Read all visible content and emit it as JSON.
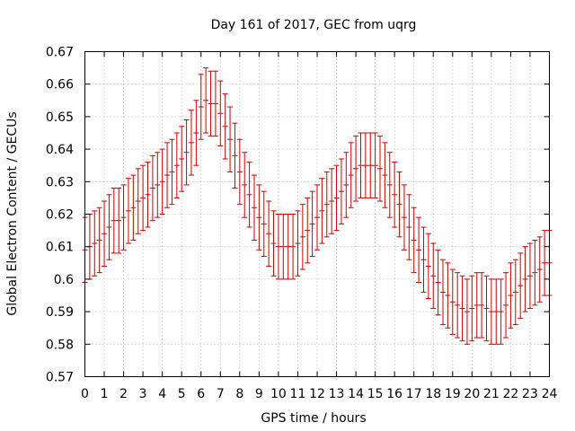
{
  "chart_data": {
    "type": "errorbar",
    "title": "Day 161 of 2017, GEC from uqrg",
    "xlabel": "GPS time / hours",
    "ylabel": "Global Electron Content / GECUs",
    "xlim": [
      0,
      24
    ],
    "ylim": [
      0.57,
      0.67
    ],
    "xticks": [
      "0",
      "1",
      "2",
      "3",
      "4",
      "5",
      "6",
      "7",
      "8",
      "9",
      "10",
      "11",
      "12",
      "13",
      "14",
      "15",
      "16",
      "17",
      "18",
      "19",
      "20",
      "21",
      "22",
      "23",
      "24"
    ],
    "yticks": [
      "0.57",
      "0.58",
      "0.59",
      "0.6",
      "0.61",
      "0.62",
      "0.63",
      "0.64",
      "0.65",
      "0.66",
      "0.67"
    ],
    "grid": true,
    "series_color": "#cc0000",
    "error": 0.01,
    "x": [
      0,
      0.25,
      0.5,
      0.75,
      1,
      1.25,
      1.5,
      1.75,
      2,
      2.25,
      2.5,
      2.75,
      3,
      3.25,
      3.5,
      3.75,
      4,
      4.25,
      4.5,
      4.75,
      5,
      5.25,
      5.5,
      5.75,
      6,
      6.25,
      6.5,
      6.75,
      7,
      7.25,
      7.5,
      7.75,
      8,
      8.25,
      8.5,
      8.75,
      9,
      9.25,
      9.5,
      9.75,
      10,
      10.25,
      10.5,
      10.75,
      11,
      11.25,
      11.5,
      11.75,
      12,
      12.25,
      12.5,
      12.75,
      13,
      13.25,
      13.5,
      13.75,
      14,
      14.25,
      14.5,
      14.75,
      15,
      15.25,
      15.5,
      15.75,
      16,
      16.25,
      16.5,
      16.75,
      17,
      17.25,
      17.5,
      17.75,
      18,
      18.25,
      18.5,
      18.75,
      19,
      19.25,
      19.5,
      19.75,
      20,
      20.25,
      20.5,
      20.75,
      21,
      21.25,
      21.5,
      21.75,
      22,
      22.25,
      22.5,
      22.75,
      23,
      23.25,
      23.5,
      23.75,
      24
    ],
    "y": [
      0.609,
      0.61,
      0.611,
      0.612,
      0.614,
      0.616,
      0.618,
      0.618,
      0.619,
      0.621,
      0.622,
      0.624,
      0.625,
      0.626,
      0.628,
      0.629,
      0.63,
      0.632,
      0.633,
      0.635,
      0.637,
      0.639,
      0.642,
      0.645,
      0.653,
      0.655,
      0.654,
      0.654,
      0.651,
      0.647,
      0.643,
      0.638,
      0.633,
      0.629,
      0.626,
      0.622,
      0.619,
      0.617,
      0.614,
      0.611,
      0.61,
      0.61,
      0.61,
      0.61,
      0.611,
      0.613,
      0.615,
      0.617,
      0.619,
      0.621,
      0.623,
      0.624,
      0.625,
      0.627,
      0.629,
      0.632,
      0.634,
      0.635,
      0.635,
      0.635,
      0.635,
      0.634,
      0.632,
      0.629,
      0.626,
      0.623,
      0.619,
      0.616,
      0.612,
      0.609,
      0.606,
      0.604,
      0.601,
      0.599,
      0.596,
      0.595,
      0.593,
      0.592,
      0.591,
      0.59,
      0.591,
      0.592,
      0.592,
      0.591,
      0.59,
      0.59,
      0.59,
      0.592,
      0.595,
      0.596,
      0.598,
      0.6,
      0.601,
      0.602,
      0.603,
      0.605,
      0.605
    ]
  }
}
